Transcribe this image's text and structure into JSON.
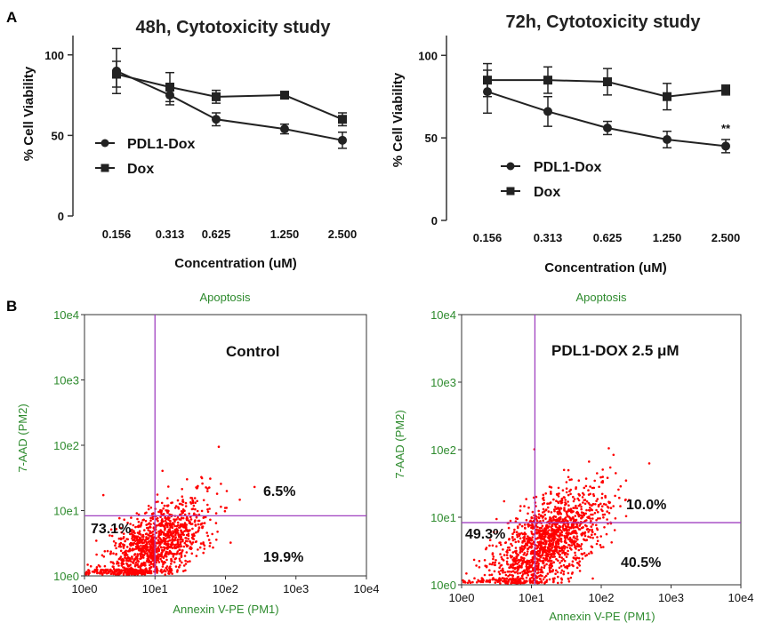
{
  "panels": {
    "a": "A",
    "b": "B"
  },
  "colors": {
    "line": "#222222",
    "dot": "#ff0000",
    "quadrant": "#a040c0",
    "flow_text": "#2e8b2e"
  },
  "chart_data": [
    {
      "type": "line",
      "title": "48h, Cytotoxicity study",
      "xlabel": "Concentration (uM)",
      "ylabel": "% Cell Viability",
      "categories": [
        "0.156",
        "0.313",
        "0.625",
        "1.250",
        "2.500"
      ],
      "yticks": [
        "0",
        "50",
        "100"
      ],
      "ylim": [
        0,
        112
      ],
      "series": [
        {
          "name": "PDL1-Dox",
          "marker": "circle",
          "values": [
            90,
            75,
            60,
            54,
            47
          ],
          "errors": [
            14,
            6,
            4,
            3,
            5
          ]
        },
        {
          "name": "Dox",
          "marker": "square",
          "values": [
            88,
            80,
            74,
            75,
            60
          ],
          "errors": [
            8,
            9,
            4,
            1,
            4
          ]
        }
      ],
      "annotations": []
    },
    {
      "type": "line",
      "title": "72h, Cytotoxicity study",
      "xlabel": "Concentration (uM)",
      "ylabel": "% Cell Viability",
      "categories": [
        "0.156",
        "0.313",
        "0.625",
        "1.250",
        "2.500"
      ],
      "yticks": [
        "0",
        "50",
        "100"
      ],
      "ylim": [
        0,
        112
      ],
      "series": [
        {
          "name": "PDL1-Dox",
          "marker": "circle",
          "values": [
            78,
            66,
            56,
            49,
            45
          ],
          "errors": [
            13,
            9,
            4,
            5,
            4
          ]
        },
        {
          "name": "Dox",
          "marker": "square",
          "values": [
            85,
            85,
            84,
            75,
            79
          ],
          "errors": [
            10,
            8,
            8,
            8,
            3
          ]
        }
      ],
      "annotations": [
        {
          "category_index": 4,
          "text": "**"
        }
      ]
    },
    {
      "type": "scatter",
      "title": "Apoptosis",
      "xlabel": "Annexin V-PE (PM1)",
      "ylabel": "7-AAD (PM2)",
      "xticks": [
        "10e0",
        "10e1",
        "10e2",
        "10e3",
        "10e4"
      ],
      "yticks": [
        "10e0",
        "10e1",
        "10e2",
        "10e3",
        "10e4"
      ],
      "xlim_log10": [
        0,
        4
      ],
      "ylim_log10": [
        0,
        4
      ],
      "gate": {
        "x_log10": 1.0,
        "y_log10": 0.92
      },
      "sample_label": "Control",
      "quadrants": {
        "upper_left": "",
        "upper_right": "6.5%",
        "lower_left": "73.1%",
        "lower_right": "19.9%"
      },
      "cloud": {
        "center_x_log10": 1.0,
        "center_y_log10": 0.45,
        "spread_x": 0.38,
        "spread_y": 0.28,
        "slope": 0.55,
        "n": 1300
      }
    },
    {
      "type": "scatter",
      "title": "Apoptosis",
      "xlabel": "Annexin V-PE (PM1)",
      "ylabel": "7-AAD (PM2)",
      "xticks": [
        "10e0",
        "10e1",
        "10e2",
        "10e3",
        "10e4"
      ],
      "yticks": [
        "10e0",
        "10e1",
        "10e2",
        "10e3",
        "10e4"
      ],
      "xlim_log10": [
        0,
        4
      ],
      "ylim_log10": [
        0,
        4
      ],
      "gate": {
        "x_log10": 1.05,
        "y_log10": 0.92
      },
      "sample_label": "PDL1-DOX 2.5 μM",
      "quadrants": {
        "upper_left": "",
        "upper_right": "10.0%",
        "lower_left": "49.3%",
        "lower_right": "40.5%"
      },
      "cloud": {
        "center_x_log10": 1.2,
        "center_y_log10": 0.6,
        "spread_x": 0.42,
        "spread_y": 0.32,
        "slope": 0.6,
        "n": 1500
      }
    }
  ]
}
